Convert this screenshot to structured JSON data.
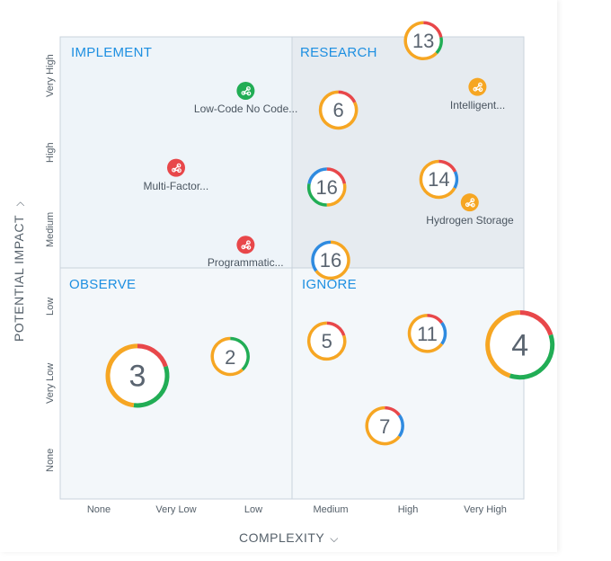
{
  "quadrants": {
    "implement": "IMPLEMENT",
    "research": "RESEARCH",
    "observe": "OBSERVE",
    "ignore": "IGNORE"
  },
  "axes": {
    "x_title": "COMPLEXITY",
    "y_title": "POTENTIAL IMPACT"
  },
  "colors": {
    "red": "#e8474a",
    "orange": "#f6a623",
    "green": "#21ad55",
    "blue": "#2f8be0",
    "quadrant_accent": "#1d8fe1",
    "top_left_bg": "#eef4f9",
    "top_right_bg": "#e6ebf0",
    "bottom_bg": "#f3f7fa"
  },
  "chart_data": {
    "type": "scatter",
    "x_categories": [
      "None",
      "Very Low",
      "Low",
      "Medium",
      "High",
      "Very High"
    ],
    "y_categories": [
      "None",
      "Very Low",
      "Low",
      "Medium",
      "High",
      "Very High"
    ],
    "items": [
      {
        "label": "Low-Code No Code...",
        "x": 2.4,
        "y": 5.3,
        "color": "#21ad55"
      },
      {
        "label": "Multi-Factor...",
        "x": 1.5,
        "y": 4.3,
        "color": "#e8474a"
      },
      {
        "label": "Programmatic...",
        "x": 2.4,
        "y": 3.3,
        "color": "#e8474a"
      },
      {
        "label": "Intelligent...",
        "x": 5.4,
        "y": 5.35,
        "color": "#f6a623"
      },
      {
        "label": "Hydrogen Storage",
        "x": 5.3,
        "y": 3.85,
        "color": "#f6a623"
      }
    ],
    "clusters": [
      {
        "count": 13,
        "x": 4.7,
        "y": 5.95,
        "segments": [
          {
            "c": "#e8474a",
            "f": 0.22
          },
          {
            "c": "#21ad55",
            "f": 0.15
          },
          {
            "c": "#f6a623",
            "f": 0.63
          }
        ]
      },
      {
        "count": 6,
        "x": 3.6,
        "y": 5.05,
        "segments": [
          {
            "c": "#e8474a",
            "f": 0.18
          },
          {
            "c": "#f6a623",
            "f": 0.82
          }
        ]
      },
      {
        "count": 16,
        "x": 3.45,
        "y": 4.05,
        "segments": [
          {
            "c": "#e8474a",
            "f": 0.22
          },
          {
            "c": "#f6a623",
            "f": 0.28
          },
          {
            "c": "#21ad55",
            "f": 0.28
          },
          {
            "c": "#2f8be0",
            "f": 0.22
          }
        ]
      },
      {
        "count": 14,
        "x": 4.9,
        "y": 4.15,
        "segments": [
          {
            "c": "#e8474a",
            "f": 0.18
          },
          {
            "c": "#2f8be0",
            "f": 0.15
          },
          {
            "c": "#f6a623",
            "f": 0.67
          }
        ]
      },
      {
        "count": 16,
        "x": 3.5,
        "y": 3.1,
        "segments": [
          {
            "c": "#f6a623",
            "f": 0.65
          },
          {
            "c": "#2f8be0",
            "f": 0.35
          }
        ]
      },
      {
        "count": 3,
        "x": 1.0,
        "y": 1.6,
        "segments": [
          {
            "c": "#e8474a",
            "f": 0.2
          },
          {
            "c": "#21ad55",
            "f": 0.32
          },
          {
            "c": "#f6a623",
            "f": 0.48
          }
        ]
      },
      {
        "count": 2,
        "x": 2.2,
        "y": 1.85,
        "segments": [
          {
            "c": "#21ad55",
            "f": 0.38
          },
          {
            "c": "#f6a623",
            "f": 0.62
          }
        ]
      },
      {
        "count": 5,
        "x": 3.45,
        "y": 2.05,
        "segments": [
          {
            "c": "#e8474a",
            "f": 0.2
          },
          {
            "c": "#f6a623",
            "f": 0.8
          }
        ]
      },
      {
        "count": 11,
        "x": 4.75,
        "y": 2.15,
        "segments": [
          {
            "c": "#e8474a",
            "f": 0.15
          },
          {
            "c": "#2f8be0",
            "f": 0.2
          },
          {
            "c": "#f6a623",
            "f": 0.65
          }
        ]
      },
      {
        "count": 4,
        "x": 5.95,
        "y": 2.0,
        "segments": [
          {
            "c": "#e8474a",
            "f": 0.2
          },
          {
            "c": "#21ad55",
            "f": 0.35
          },
          {
            "c": "#f6a623",
            "f": 0.45
          }
        ]
      },
      {
        "count": 7,
        "x": 4.2,
        "y": 0.95,
        "segments": [
          {
            "c": "#e8474a",
            "f": 0.15
          },
          {
            "c": "#2f8be0",
            "f": 0.2
          },
          {
            "c": "#f6a623",
            "f": 0.65
          }
        ]
      }
    ]
  }
}
